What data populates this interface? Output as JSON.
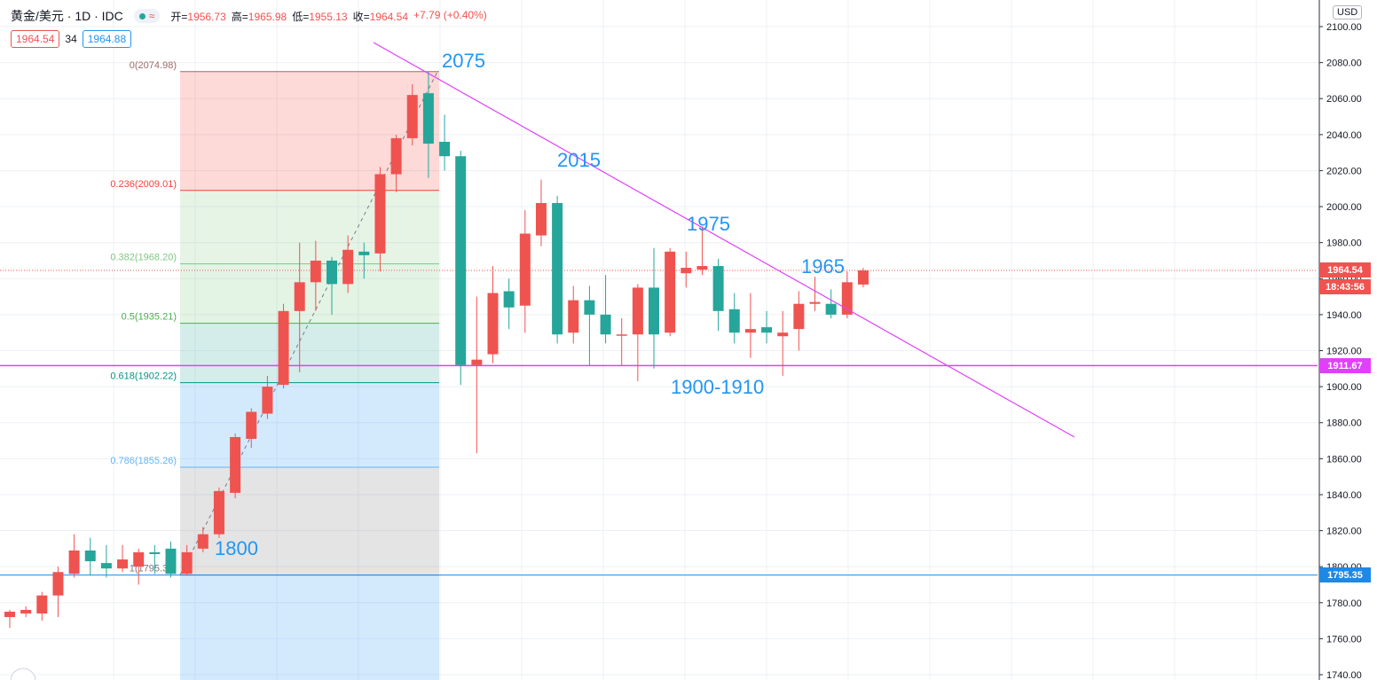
{
  "header": {
    "symbol": "黄金/美元 · 1D · IDC",
    "status_icon": "market-open-dot-icon",
    "wave_icon": "≈",
    "ohlc": [
      {
        "label": "开=",
        "value": "1956.73"
      },
      {
        "label": "高=",
        "value": "1965.98"
      },
      {
        "label": "低=",
        "value": "1955.13"
      },
      {
        "label": "收=",
        "value": "1964.54"
      },
      {
        "label": "",
        "value": "+7.79 (+0.40%)"
      }
    ],
    "bid": "1964.54",
    "spread": "34",
    "ask": "1964.88"
  },
  "currency": "USD",
  "colors": {
    "up": "#ef5350",
    "down": "#26a69a",
    "trendline": "#e040fb",
    "support": "#e040fb",
    "low_line": "#1e88e5",
    "annotation": "#2196f3"
  },
  "price_tags": {
    "last_price": "1964.54",
    "countdown": "18:43:56",
    "support_level": "1911.67",
    "low_level": "1795.35"
  },
  "chart_data": {
    "type": "candlestick",
    "title": "黄金/美元 · 1D · IDC",
    "ylim": [
      1740,
      2100
    ],
    "y_ticks": [
      1740,
      1760,
      1780,
      1800,
      1820,
      1840,
      1860,
      1880,
      1900,
      1920,
      1940,
      1960,
      1980,
      2000,
      2020,
      2040,
      2060,
      2080,
      2100
    ],
    "y_tick_labels": [
      "1740.00",
      "1760.00",
      "1780.00",
      "1800.00",
      "1820.00",
      "1840.00",
      "1860.00",
      "1880.00",
      "1900.00",
      "1920.00",
      "1940.00",
      "1960.00",
      "1980.00",
      "2000.00",
      "2020.00",
      "2040.00",
      "2060.00",
      "2080.00",
      "2100.00"
    ],
    "grid": true,
    "candles": [
      {
        "o": 1772,
        "h": 1776,
        "l": 1766,
        "c": 1775
      },
      {
        "o": 1774,
        "h": 1778,
        "l": 1772,
        "c": 1776
      },
      {
        "o": 1774,
        "h": 1786,
        "l": 1770,
        "c": 1784
      },
      {
        "o": 1784,
        "h": 1800,
        "l": 1772,
        "c": 1797
      },
      {
        "o": 1796,
        "h": 1818,
        "l": 1794,
        "c": 1809
      },
      {
        "o": 1809,
        "h": 1816,
        "l": 1795,
        "c": 1803
      },
      {
        "o": 1802,
        "h": 1812,
        "l": 1794,
        "c": 1799
      },
      {
        "o": 1799,
        "h": 1812,
        "l": 1797,
        "c": 1804
      },
      {
        "o": 1800,
        "h": 1810,
        "l": 1790,
        "c": 1808
      },
      {
        "o": 1808,
        "h": 1812,
        "l": 1796,
        "c": 1807
      },
      {
        "o": 1810,
        "h": 1814,
        "l": 1794,
        "c": 1796
      },
      {
        "o": 1796,
        "h": 1812,
        "l": 1795,
        "c": 1808
      },
      {
        "o": 1810,
        "h": 1822,
        "l": 1808,
        "c": 1818
      },
      {
        "o": 1818,
        "h": 1844,
        "l": 1816,
        "c": 1842
      },
      {
        "o": 1841,
        "h": 1874,
        "l": 1838,
        "c": 1872
      },
      {
        "o": 1871,
        "h": 1888,
        "l": 1866,
        "c": 1886
      },
      {
        "o": 1885,
        "h": 1906,
        "l": 1882,
        "c": 1900
      },
      {
        "o": 1901,
        "h": 1946,
        "l": 1899,
        "c": 1942
      },
      {
        "o": 1942,
        "h": 1980,
        "l": 1908,
        "c": 1958
      },
      {
        "o": 1958,
        "h": 1981,
        "l": 1942,
        "c": 1970
      },
      {
        "o": 1970,
        "h": 1972,
        "l": 1940,
        "c": 1957
      },
      {
        "o": 1957,
        "h": 1984,
        "l": 1952,
        "c": 1976
      },
      {
        "o": 1975,
        "h": 1980,
        "l": 1960,
        "c": 1973
      },
      {
        "o": 1974,
        "h": 2022,
        "l": 1964,
        "c": 2018
      },
      {
        "o": 2018,
        "h": 2040,
        "l": 2008,
        "c": 2038
      },
      {
        "o": 2038,
        "h": 2068,
        "l": 2034,
        "c": 2062
      },
      {
        "o": 2063,
        "h": 2075,
        "l": 2016,
        "c": 2035
      },
      {
        "o": 2036,
        "h": 2051,
        "l": 2020,
        "c": 2028
      },
      {
        "o": 2028,
        "h": 2031,
        "l": 1901,
        "c": 1912
      },
      {
        "o": 1912,
        "h": 1950,
        "l": 1863,
        "c": 1915
      },
      {
        "o": 1918,
        "h": 1967,
        "l": 1913,
        "c": 1952
      },
      {
        "o": 1953,
        "h": 1960,
        "l": 1932,
        "c": 1944
      },
      {
        "o": 1945,
        "h": 1998,
        "l": 1930,
        "c": 1985
      },
      {
        "o": 1984,
        "h": 2015,
        "l": 1978,
        "c": 2002
      },
      {
        "o": 2002,
        "h": 2006,
        "l": 1924,
        "c": 1929
      },
      {
        "o": 1930,
        "h": 1956,
        "l": 1924,
        "c": 1948
      },
      {
        "o": 1948,
        "h": 1956,
        "l": 1912,
        "c": 1940
      },
      {
        "o": 1940,
        "h": 1962,
        "l": 1924,
        "c": 1929
      },
      {
        "o": 1929,
        "h": 1938,
        "l": 1912,
        "c": 1929
      },
      {
        "o": 1929,
        "h": 1957,
        "l": 1903,
        "c": 1955
      },
      {
        "o": 1955,
        "h": 1977,
        "l": 1910,
        "c": 1929
      },
      {
        "o": 1930,
        "h": 1977,
        "l": 1928,
        "c": 1975
      },
      {
        "o": 1963,
        "h": 1975,
        "l": 1955,
        "c": 1966
      },
      {
        "o": 1965,
        "h": 1989,
        "l": 1962,
        "c": 1967
      },
      {
        "o": 1967,
        "h": 1971,
        "l": 1931,
        "c": 1942
      },
      {
        "o": 1943,
        "h": 1952,
        "l": 1924,
        "c": 1930
      },
      {
        "o": 1930,
        "h": 1952,
        "l": 1916,
        "c": 1932
      },
      {
        "o": 1933,
        "h": 1942,
        "l": 1924,
        "c": 1930
      },
      {
        "o": 1928,
        "h": 1942,
        "l": 1906,
        "c": 1930
      },
      {
        "o": 1932,
        "h": 1953,
        "l": 1920,
        "c": 1946
      },
      {
        "o": 1946,
        "h": 1961,
        "l": 1942,
        "c": 1947
      },
      {
        "o": 1946,
        "h": 1954,
        "l": 1938,
        "c": 1940
      },
      {
        "o": 1940,
        "h": 1964,
        "l": 1938,
        "c": 1958
      },
      {
        "o": 1956.73,
        "h": 1965.98,
        "l": 1955.13,
        "c": 1964.54
      }
    ],
    "fibonacci": {
      "levels": [
        {
          "ratio": "0",
          "label": "0(2074.98)",
          "price": 2074.98
        },
        {
          "ratio": "0.236",
          "label": "0.236(2009.01)",
          "price": 2009.01
        },
        {
          "ratio": "0.382",
          "label": "0.382(1968.20)",
          "price": 1968.2
        },
        {
          "ratio": "0.5",
          "label": "0.5(1935.21)",
          "price": 1935.21
        },
        {
          "ratio": "0.618",
          "label": "0.618(1902.22)",
          "price": 1902.22
        },
        {
          "ratio": "0.786",
          "label": "0.786(1855.26)",
          "price": 1855.26
        },
        {
          "ratio": "1",
          "label": "1(1795.35)",
          "price": 1795.35
        }
      ]
    },
    "annotations": [
      {
        "text": "2075"
      },
      {
        "text": "2015"
      },
      {
        "text": "1975"
      },
      {
        "text": "1965"
      },
      {
        "text": "1800"
      },
      {
        "text": "1900-1910"
      }
    ],
    "horizontal_lines": [
      {
        "price": 1911.67,
        "label": "1911.67"
      },
      {
        "price": 1795.35,
        "label": "1795.35"
      }
    ],
    "last_price_line": 1964.54
  }
}
